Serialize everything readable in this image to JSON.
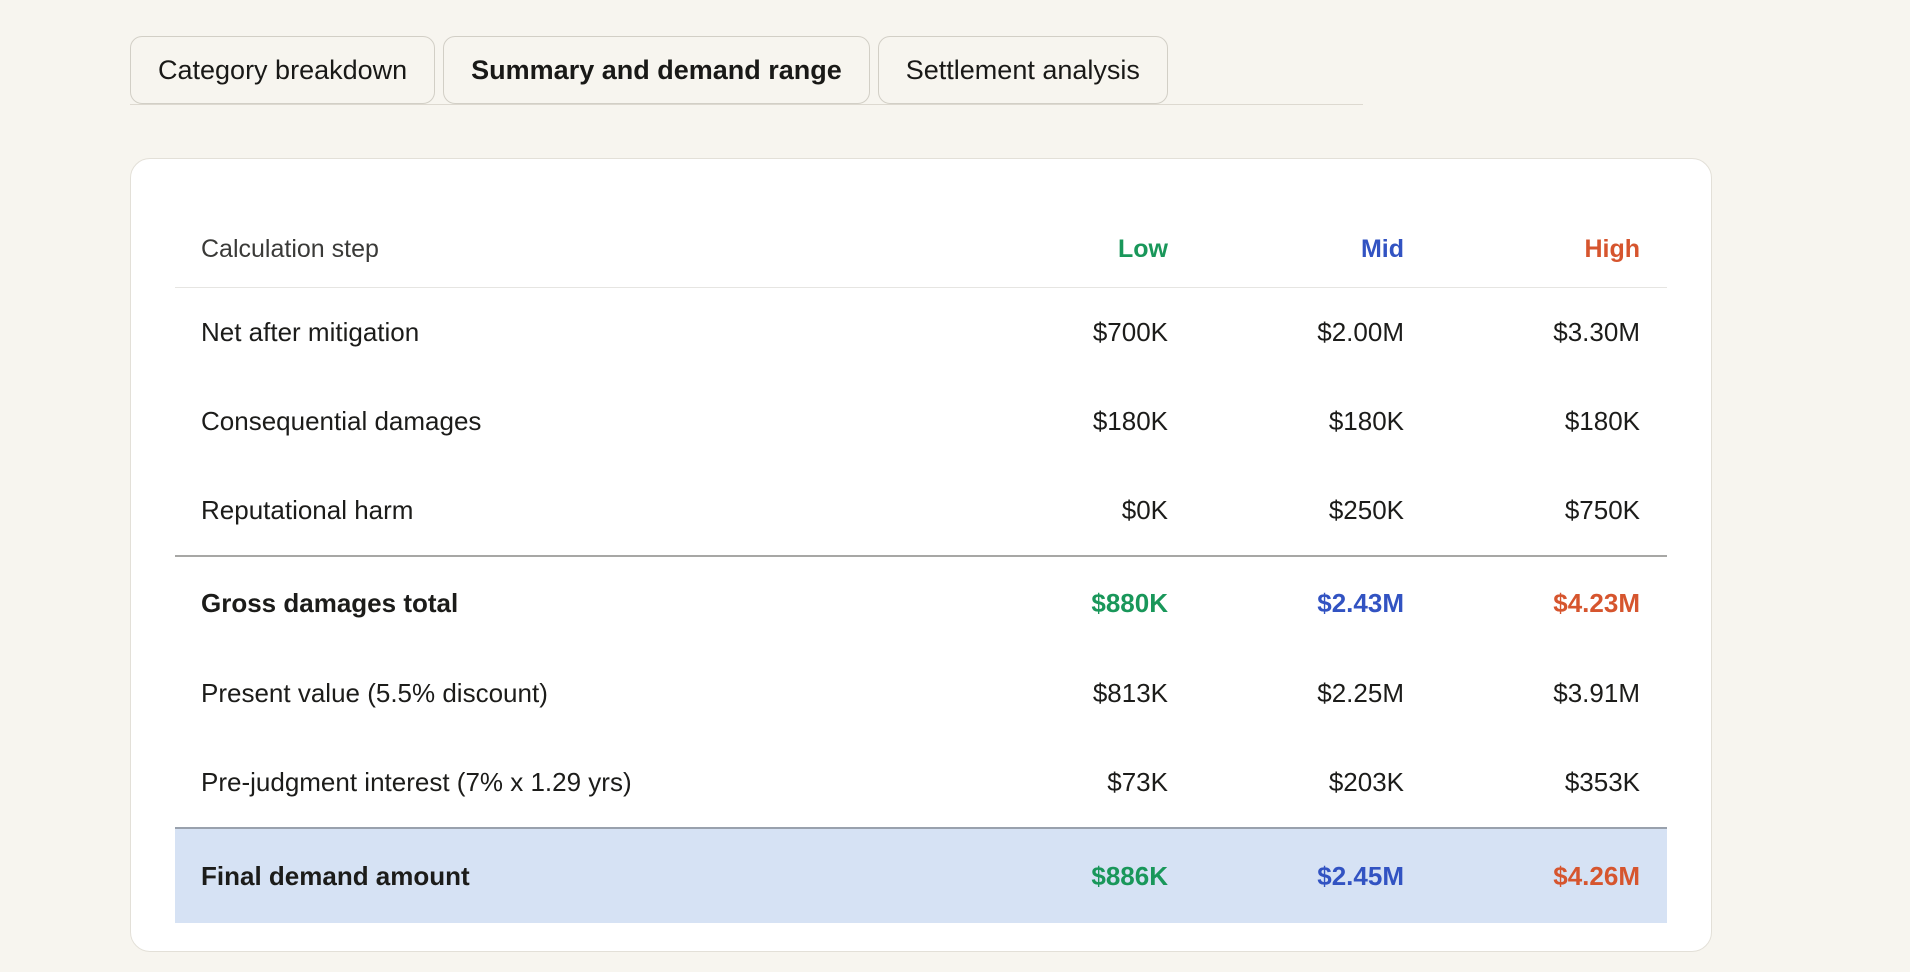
{
  "tabs": [
    {
      "label": "Category breakdown",
      "active": false
    },
    {
      "label": "Summary and demand range",
      "active": true
    },
    {
      "label": "Settlement analysis",
      "active": false
    }
  ],
  "accent_colors": {
    "low": "#19975a",
    "mid": "#3253c2",
    "high": "#d6552e",
    "final_row_background": "#d6e2f4"
  },
  "table": {
    "header": {
      "step": "Calculation step",
      "low": "Low",
      "mid": "Mid",
      "high": "High"
    },
    "rows": [
      {
        "label": "Net after mitigation",
        "low": "$700K",
        "mid": "$2.00M",
        "high": "$3.30M",
        "style": "normal"
      },
      {
        "label": "Consequential damages",
        "low": "$180K",
        "mid": "$180K",
        "high": "$180K",
        "style": "normal"
      },
      {
        "label": "Reputational harm",
        "low": "$0K",
        "mid": "$250K",
        "high": "$750K",
        "style": "normal"
      },
      {
        "label": "Gross damages total",
        "low": "$880K",
        "mid": "$2.43M",
        "high": "$4.23M",
        "style": "subtotal"
      },
      {
        "label": "Present value (5.5% discount)",
        "low": "$813K",
        "mid": "$2.25M",
        "high": "$3.91M",
        "style": "normal"
      },
      {
        "label": "Pre-judgment interest (7% x 1.29 yrs)",
        "low": "$73K",
        "mid": "$203K",
        "high": "$353K",
        "style": "normal"
      },
      {
        "label": "Final demand amount",
        "low": "$886K",
        "mid": "$2.45M",
        "high": "$4.26M",
        "style": "final"
      }
    ]
  }
}
